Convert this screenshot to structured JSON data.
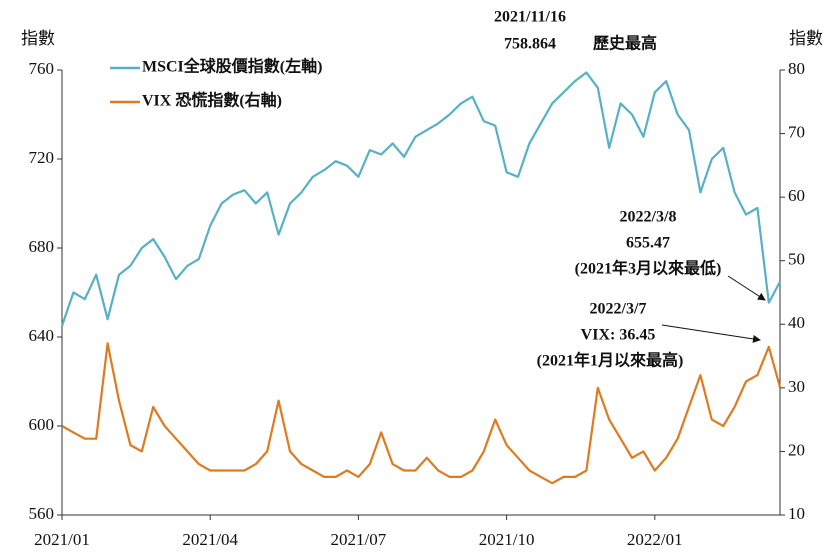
{
  "chart_data": {
    "type": "line",
    "y_label": "指數",
    "y2_label": "指數",
    "categories": [
      "2021/01",
      null,
      null,
      null,
      null,
      null,
      null,
      null,
      null,
      null,
      null,
      null,
      null,
      "2021/04",
      null,
      null,
      null,
      null,
      null,
      null,
      null,
      null,
      null,
      null,
      null,
      null,
      "2021/07",
      null,
      null,
      null,
      null,
      null,
      null,
      null,
      null,
      null,
      null,
      null,
      null,
      "2021/10",
      null,
      null,
      null,
      null,
      null,
      null,
      null,
      null,
      null,
      null,
      null,
      null,
      "2022/01",
      null,
      null,
      null,
      null,
      null,
      null,
      null,
      null,
      null,
      null,
      null
    ],
    "series": [
      {
        "name": "MSCI全球股價指數(左軸)",
        "color": "#56b1c7",
        "axis": "y",
        "values": [
          645,
          660,
          657,
          668,
          648,
          668,
          672,
          680,
          684,
          676,
          666,
          672,
          675,
          690,
          700,
          704,
          706,
          700,
          705,
          686,
          700,
          705,
          712,
          715,
          719,
          717,
          712,
          724,
          722,
          727,
          721,
          730,
          733,
          736,
          740,
          745,
          748,
          737,
          735,
          714,
          712,
          727,
          736,
          745,
          750,
          755,
          758.864,
          752,
          725,
          745,
          740,
          730,
          750,
          755,
          740,
          733,
          705,
          720,
          725,
          705,
          695,
          698,
          655.47,
          665
        ]
      },
      {
        "name": "VIX 恐慌指數(右軸)",
        "color": "#e07a1f",
        "axis": "y2",
        "values": [
          24,
          23,
          22,
          22,
          37,
          28,
          21,
          20,
          27,
          24,
          22,
          20,
          18,
          17,
          17,
          17,
          17,
          18,
          20,
          28,
          20,
          18,
          17,
          16,
          16,
          17,
          16,
          18,
          23,
          18,
          17,
          17,
          19,
          17,
          16,
          16,
          17,
          20,
          25,
          21,
          19,
          17,
          16,
          15,
          16,
          16,
          17,
          30,
          25,
          22,
          19,
          20,
          17,
          19,
          22,
          27,
          32,
          25,
          24,
          27,
          31,
          32,
          36.45,
          30
        ]
      }
    ],
    "ylim": [
      560,
      760
    ],
    "yticks": [
      560,
      600,
      640,
      680,
      720,
      760
    ],
    "y2lim": [
      10,
      80
    ],
    "y2ticks": [
      10,
      20,
      30,
      40,
      50,
      60,
      70,
      80
    ],
    "annotations": [
      "2021/11/16",
      "758.864",
      "歷史最高",
      "2022/3/8",
      "655.47",
      "(2021年3月以來最低)",
      "2022/3/7",
      "VIX: 36.45",
      "(2021年1月以來最高)"
    ]
  }
}
